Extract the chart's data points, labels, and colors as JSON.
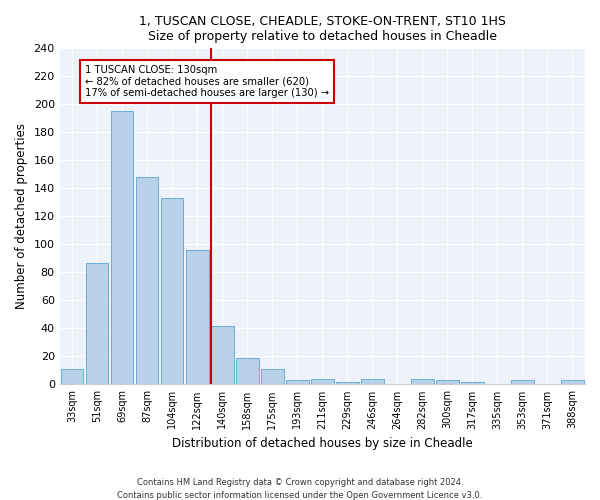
{
  "title1": "1, TUSCAN CLOSE, CHEADLE, STOKE-ON-TRENT, ST10 1HS",
  "title2": "Size of property relative to detached houses in Cheadle",
  "xlabel": "Distribution of detached houses by size in Cheadle",
  "ylabel": "Number of detached properties",
  "categories": [
    "33sqm",
    "51sqm",
    "69sqm",
    "87sqm",
    "104sqm",
    "122sqm",
    "140sqm",
    "158sqm",
    "175sqm",
    "193sqm",
    "211sqm",
    "229sqm",
    "246sqm",
    "264sqm",
    "282sqm",
    "300sqm",
    "317sqm",
    "335sqm",
    "353sqm",
    "371sqm",
    "388sqm"
  ],
  "values": [
    11,
    87,
    195,
    148,
    133,
    96,
    42,
    19,
    11,
    3,
    4,
    2,
    4,
    0,
    4,
    3,
    2,
    0,
    3,
    0,
    3
  ],
  "bar_color": "#b8d0e8",
  "bar_edge_color": "#6aaed6",
  "vline_index": 6,
  "vline_color": "#cc0000",
  "annotation_line1": "1 TUSCAN CLOSE: 130sqm",
  "annotation_line2": "← 82% of detached houses are smaller (620)",
  "annotation_line3": "17% of semi-detached houses are larger (130) →",
  "footnote1": "Contains HM Land Registry data © Crown copyright and database right 2024.",
  "footnote2": "Contains public sector information licensed under the Open Government Licence v3.0.",
  "ylim": [
    0,
    240
  ],
  "yticks": [
    0,
    20,
    40,
    60,
    80,
    100,
    120,
    140,
    160,
    180,
    200,
    220,
    240
  ],
  "background_color": "#eef2fa"
}
